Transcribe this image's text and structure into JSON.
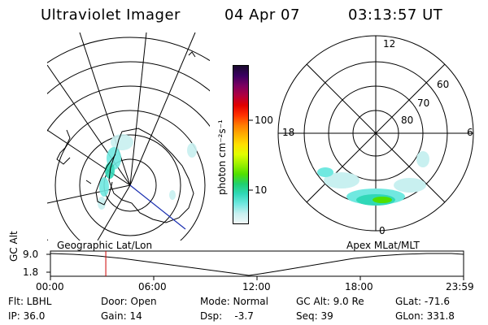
{
  "header": {
    "title": "Ultraviolet Imager",
    "date": "04 Apr 07",
    "time": "03:13:57 UT"
  },
  "colorbar": {
    "unit_label": "photon cm⁻²s⁻¹",
    "ticks": [
      "100",
      "10"
    ],
    "colors": [
      "#1a0a2e",
      "#3a0060",
      "#7a0060",
      "#b00040",
      "#e00000",
      "#ff3000",
      "#ff7a00",
      "#ffb000",
      "#ffe000",
      "#e0ff00",
      "#9cf000",
      "#50e000",
      "#20d070",
      "#30d8b8",
      "#70e8e0",
      "#c8f0f0",
      "#f0f8f8"
    ]
  },
  "geo_map": {
    "label": "Geographic Lat/Lon"
  },
  "mlt_map": {
    "label": "Apex MLat/MLT",
    "hour_labels": {
      "top": "12",
      "left": "18",
      "right": "6",
      "bottom": "0"
    },
    "lat_labels": [
      "60",
      "70",
      "80"
    ]
  },
  "timeline": {
    "ylabel": "GC Alt",
    "yticks": [
      "9.0",
      "1.8"
    ],
    "xticks": [
      "00:00",
      "06:00",
      "12:00",
      "18:00",
      "23:59"
    ],
    "marker_time_fraction": 0.134,
    "marker_color": "#cc0000"
  },
  "status": {
    "filter": "Flt: LBHL",
    "door": "Door: Open",
    "mode": "Mode: Normal",
    "gc_alt": "GC Alt: 9.0 Re",
    "glat": "GLat: -71.6",
    "ip": "IP: 36.0",
    "gain": "Gain: 14",
    "dsp": "Dsp:    -3.7",
    "seq": "Seq: 39",
    "glon": "GLon: 331.8"
  }
}
